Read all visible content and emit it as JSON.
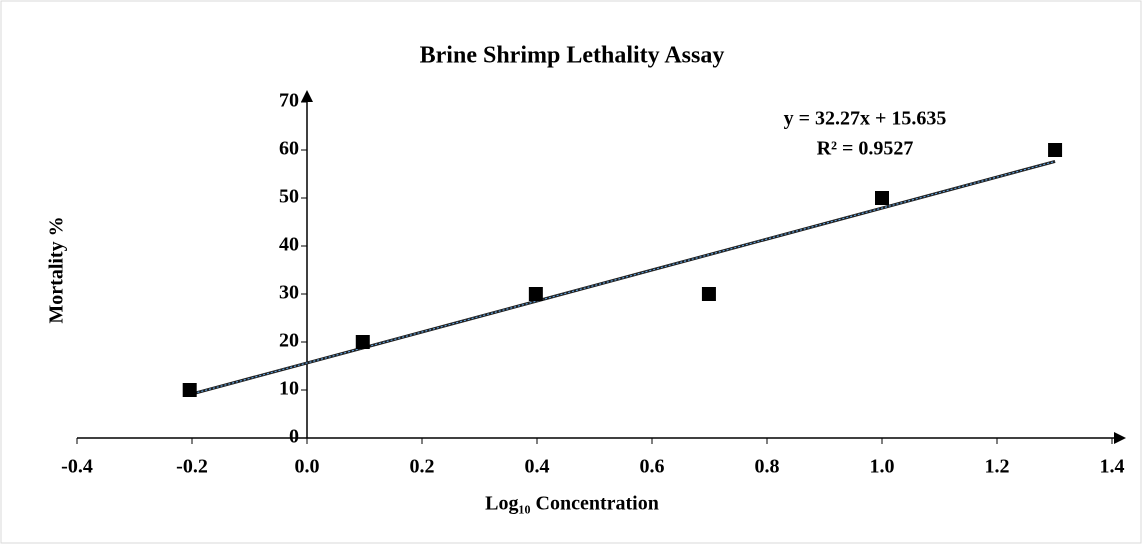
{
  "chart_data": {
    "type": "scatter",
    "title": "Brine Shrimp Lethality Assay",
    "x_label": "Log₁₀ Concentration",
    "y_label": "Mortality %",
    "series": [
      {
        "x": [
          -0.204,
          0.097,
          0.398,
          0.699,
          1.0,
          1.301
        ],
        "values": [
          10,
          20,
          30,
          30,
          50,
          60
        ],
        "color": "#000000"
      }
    ],
    "trendline": {
      "equation": "y = 32.27x + 15.635",
      "r_squared": "R² = 0.9527",
      "color": "#1f1f1f",
      "overlay_color": "#5b9bd5"
    },
    "xlim": [
      -0.4,
      1.4
    ],
    "xticks": [
      -0.4,
      -0.2,
      {
        "value": 0,
        "label": "0.0"
      },
      0.2,
      0.4,
      0.6,
      0.8,
      {
        "value": 1,
        "label": "1.0"
      },
      1.2,
      1.4
    ],
    "ylim": [
      0,
      70
    ],
    "yticks": [
      0,
      10,
      20,
      30,
      40,
      50,
      60,
      70
    ]
  }
}
